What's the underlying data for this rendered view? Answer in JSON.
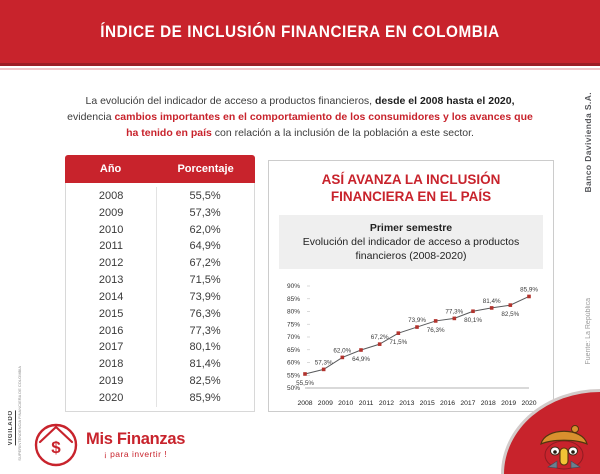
{
  "header": {
    "title": "ÍNDICE DE INCLUSIÓN FINANCIERA EN COLOMBIA"
  },
  "intro": {
    "part1": "La evolución del indicador de acceso a productos financieros, ",
    "part2": "desde el 2008 hasta el 2020,",
    "part3": " evidencia ",
    "part4": "cambios importantes en el comportamiento de los consumidores y los avances que ha tenido en país",
    "part5": " con relación a la inclusión de la población a este sector."
  },
  "table": {
    "columns": [
      "Año",
      "Porcentaje"
    ],
    "rows": [
      [
        "2008",
        "55,5%"
      ],
      [
        "2009",
        "57,3%"
      ],
      [
        "2010",
        "62,0%"
      ],
      [
        "2011",
        "64,9%"
      ],
      [
        "2012",
        "67,2%"
      ],
      [
        "2013",
        "71,5%"
      ],
      [
        "2014",
        "73,9%"
      ],
      [
        "2015",
        "76,3%"
      ],
      [
        "2016",
        "77,3%"
      ],
      [
        "2017",
        "80,1%"
      ],
      [
        "2018",
        "81,4%"
      ],
      [
        "2019",
        "82,5%"
      ],
      [
        "2020",
        "85,9%"
      ]
    ]
  },
  "panel": {
    "title": "ASÍ AVANZA LA INCLUSIÓN FINANCIERA EN EL PAÍS",
    "subtitle_bold": "Primer semestre",
    "subtitle": "Evolución del indicador de acceso a productos financieros (2008-2020)"
  },
  "chart_data": {
    "type": "line",
    "title": "Evolución del indicador de acceso a productos financieros (2008-2020)",
    "x": [
      2008,
      2009,
      2010,
      2011,
      2012,
      2013,
      2014,
      2015,
      2016,
      2017,
      2018,
      2019,
      2020
    ],
    "values": [
      55.5,
      57.3,
      62.0,
      64.9,
      67.2,
      71.5,
      73.9,
      76.3,
      77.3,
      80.1,
      81.4,
      82.5,
      85.9
    ],
    "point_labels": [
      "55,5%",
      "57,3%",
      "62,0%",
      "64,9%",
      "67,2%",
      "71,5%",
      "73,9%",
      "76,3%",
      "77,3%",
      "80,1%",
      "81,4%",
      "82,5%",
      "85,9%"
    ],
    "label_positions": [
      "below",
      "above",
      "above",
      "below",
      "above",
      "below",
      "above",
      "below",
      "above",
      "below",
      "above",
      "below",
      "above"
    ],
    "x_axis_labels": [
      "2008",
      "2009",
      "2010",
      "2011",
      "2012",
      "2013",
      "2015",
      "2016",
      "2017",
      "2018",
      "2019",
      "2020"
    ],
    "y_ticks": [
      "50%",
      "55%",
      "60%",
      "65%",
      "70%",
      "75%",
      "80%",
      "85%",
      "90%"
    ],
    "ylim": [
      50,
      90
    ],
    "grid": false,
    "legend": "none",
    "line_color": "#58595b",
    "marker_color": "#b2332d"
  },
  "side_labels": {
    "right_top": "Banco Davivienda S.A.",
    "right_bottom": "Fuente: La República",
    "left_vigilado": "VIGILADO",
    "left_small": "SUPERINTENDENCIA FINANCIERA DE COLOMBIA"
  },
  "footer": {
    "brand": "Mis Finanzas",
    "tagline": "¡ para invertir !",
    "coin_symbol": "$"
  },
  "icons": {
    "coin-house-icon": "circle with roof and $ coin",
    "casita-icon": "red house mascot with orange roof and yellow door"
  },
  "colors": {
    "brand_red": "#c8232c",
    "header_edge_dark": "#9c1c24",
    "pink_line": "#f3c6c8",
    "panel_border": "#cccccc",
    "gray_box": "#efefef",
    "roof_orange": "#d9902e",
    "door_yellow": "#f2c335"
  }
}
